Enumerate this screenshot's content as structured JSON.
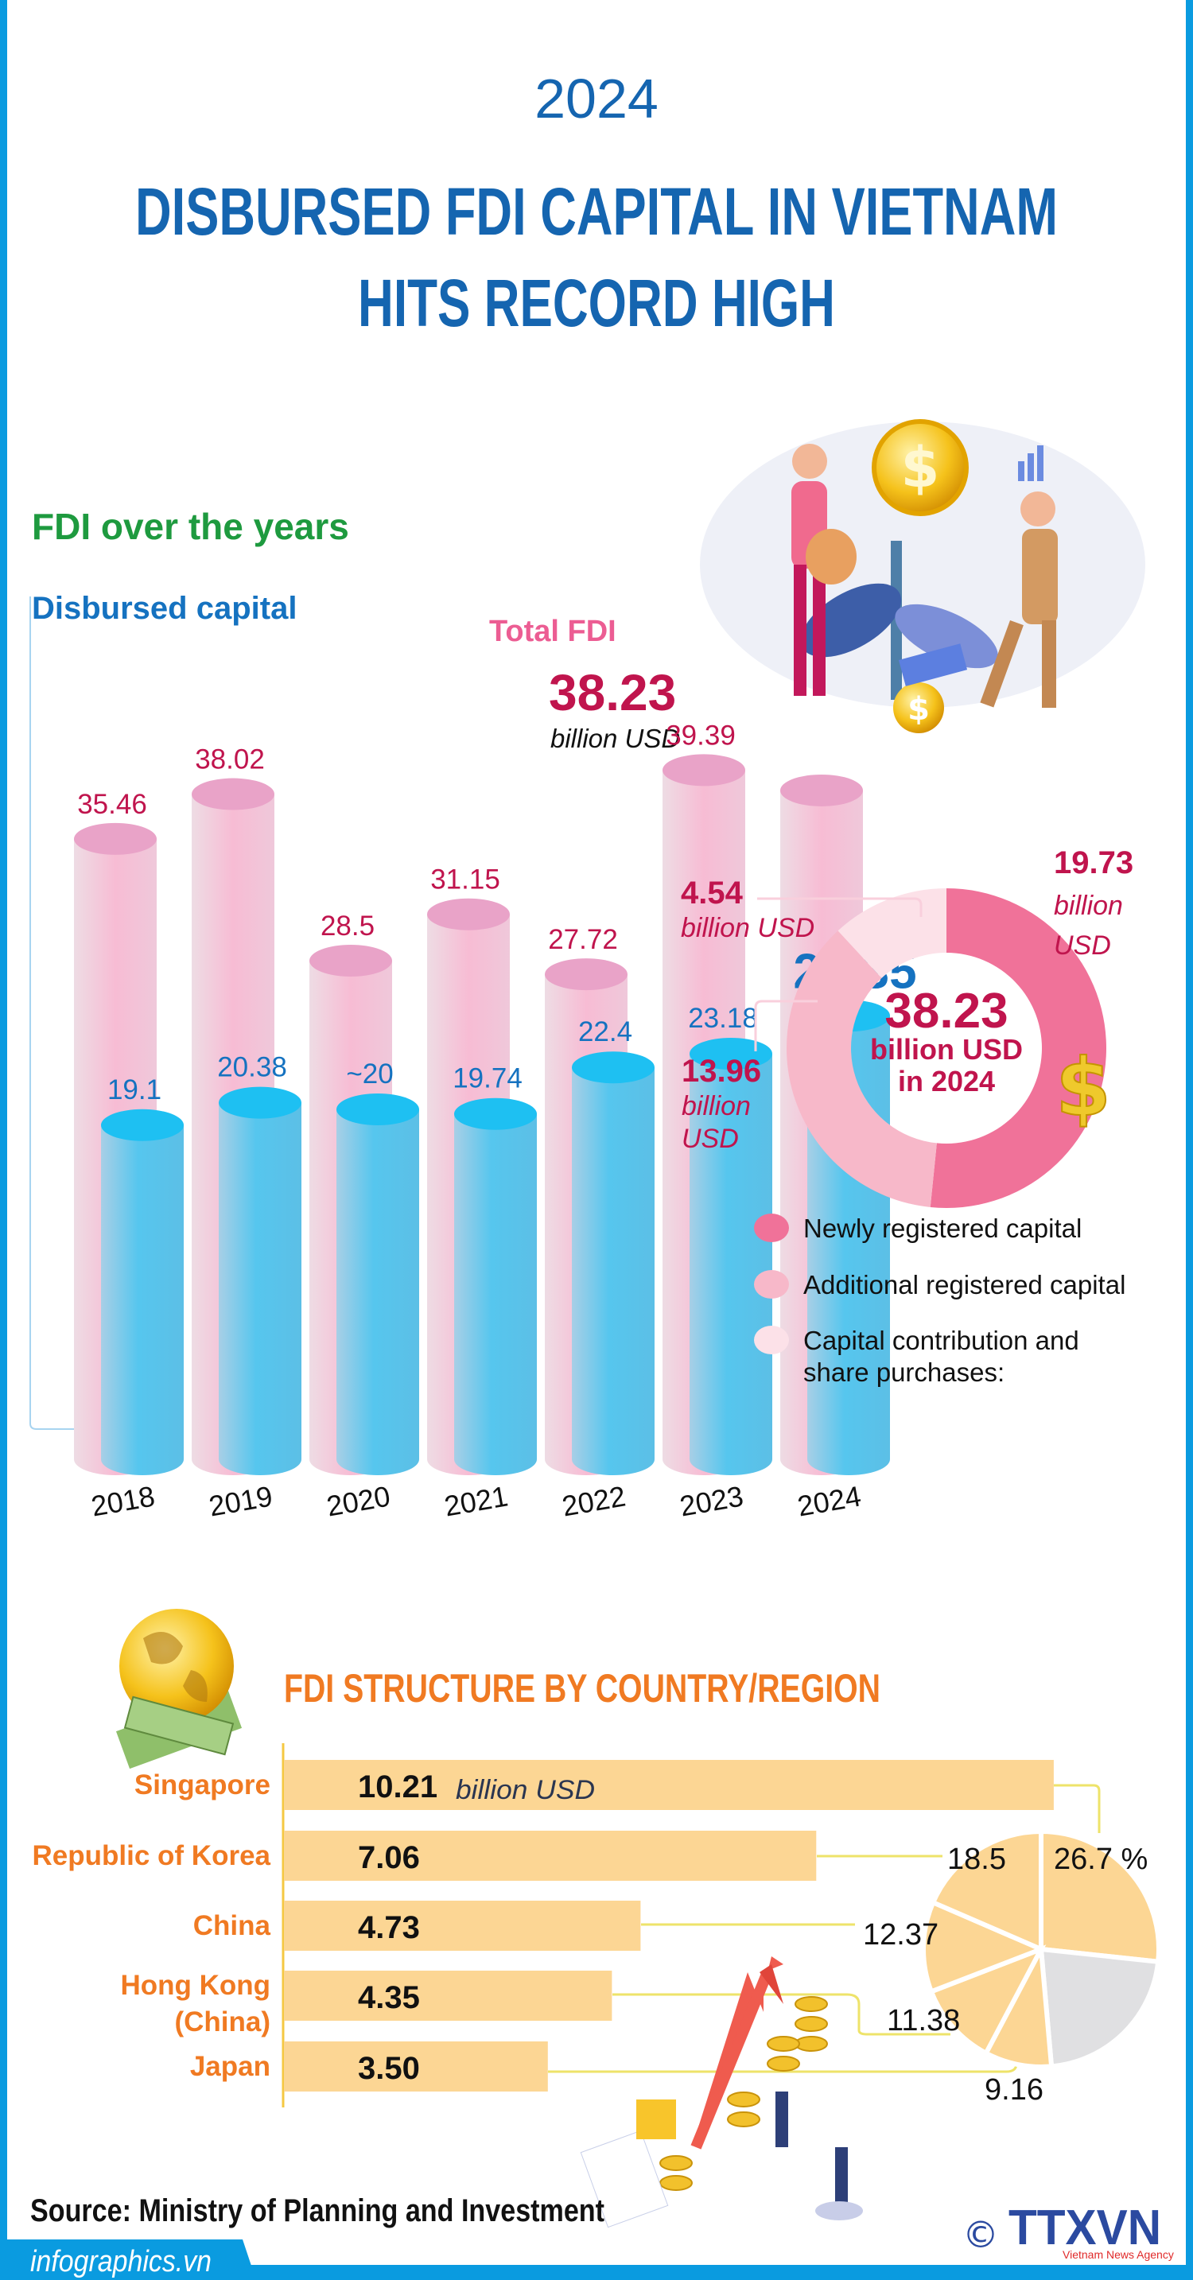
{
  "header": {
    "year": "2024",
    "title_line1": "DISBURSED FDI CAPITAL IN VIETNAM",
    "title_line2": "HITS RECORD HIGH"
  },
  "colors": {
    "border": "#0a9be0",
    "title_blue": "#1565b0",
    "green": "#1e9a3f",
    "pink_label": "#c0144d",
    "pink_title": "#ec5d93",
    "blue_label": "#1572c0",
    "total_cylinder": "#f6bcd3",
    "disbursed_cylinder": "#5ec8ec",
    "orange": "#f07a22",
    "bar_fill": "#fcd694",
    "connector": "#eee36a",
    "others_slice": "#e0e0e2"
  },
  "section1": {
    "title": "FDI over the years",
    "disbursed_label": "Disbursed capital",
    "total_label": "Total FDI",
    "total_2024_value": "38.23",
    "total_2024_unit": "billion USD",
    "disbursed_2024_value": "25.35"
  },
  "chart_data": [
    {
      "type": "bar",
      "categories": [
        "2018",
        "2019",
        "2020",
        "2021",
        "2022",
        "2023",
        "2024"
      ],
      "series": [
        {
          "name": "Total FDI",
          "values": [
            35.46,
            38.02,
            28.5,
            31.15,
            27.72,
            39.39,
            38.23
          ],
          "labels": [
            "35.46",
            "38.02",
            "28.5",
            "31.15",
            "27.72",
            "39.39",
            "38.23"
          ]
        },
        {
          "name": "Disbursed capital",
          "values": [
            19.1,
            20.38,
            20,
            19.74,
            22.4,
            23.18,
            25.35
          ],
          "labels": [
            "19.1",
            "20.38",
            "~20",
            "19.74",
            "22.4",
            "23.18",
            "25.35"
          ]
        }
      ],
      "style": "3d cylinders, overlapping"
    },
    {
      "type": "pie",
      "style": "donut",
      "center_value": "38.23",
      "center_unit": "billion USD",
      "center_year": "in 2024",
      "slices": [
        {
          "name": "Newly registered capital",
          "value": 19.73,
          "value_label": "19.73",
          "unit_line1": "billion",
          "unit_line2": "USD",
          "color": "#f07299"
        },
        {
          "name": "Additional registered capital",
          "value": 13.96,
          "value_label": "13.96",
          "unit_line1": "billion",
          "unit_line2": "USD",
          "color": "#f7b8c9"
        },
        {
          "name": "Capital contribution and share purchases:",
          "legend_line1": "Capital contribution and",
          "legend_line2": "share purchases:",
          "value": 4.54,
          "value_label": "4.54",
          "unit_line1": "billion USD",
          "color": "#fce1e8"
        }
      ]
    },
    {
      "type": "bar",
      "orientation": "horizontal",
      "title": "FDI STRUCTURE BY COUNTRY/REGION",
      "unit": "billion USD",
      "categories": [
        "Singapore",
        "Republic of Korea",
        "China",
        "Hong Kong (China)",
        "Japan"
      ],
      "category_lines": [
        [
          "Singapore"
        ],
        [
          "Republic of Korea"
        ],
        [
          "China"
        ],
        [
          "Hong Kong",
          "(China)"
        ],
        [
          "Japan"
        ]
      ],
      "values": [
        10.21,
        7.06,
        4.73,
        4.35,
        3.5
      ],
      "value_labels": [
        "10.21",
        "7.06",
        "4.73",
        "4.35",
        "3.50"
      ]
    },
    {
      "type": "pie",
      "unit": "%",
      "slices": [
        {
          "category": "Singapore",
          "value": 26.7,
          "label": "26.7 %"
        },
        {
          "category": "",
          "value": 21.89,
          "label": "",
          "color": "#e0e0e2"
        },
        {
          "category": "Japan",
          "value": 9.16,
          "label": "9.16"
        },
        {
          "category": "Hong Kong (China)",
          "value": 11.38,
          "label": "11.38"
        },
        {
          "category": "China",
          "value": 12.37,
          "label": "12.37"
        },
        {
          "category": "Republic of Korea",
          "value": 18.5,
          "label": "18.5"
        }
      ]
    }
  ],
  "footer": {
    "source": "Source: Ministry of Planning and Investment",
    "site": "infographics.vn",
    "copyright_symbol": "©",
    "logo_text": "TTXVN",
    "logo_subtext": "Vietnam News Agency"
  }
}
